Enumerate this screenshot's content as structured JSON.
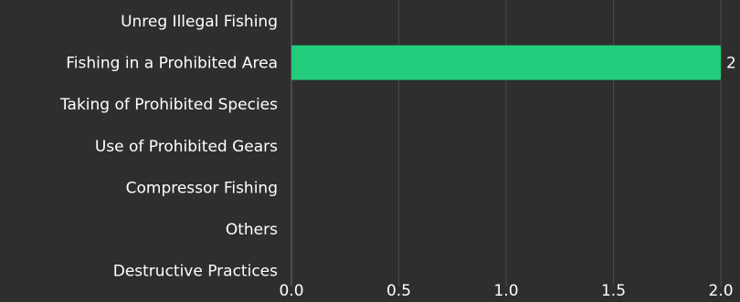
{
  "chart_data": {
    "type": "bar",
    "orientation": "horizontal",
    "categories": [
      "Unreg Illegal Fishing",
      "Fishing in a Prohibited Area",
      "Taking of Prohibited Species",
      "Use of Prohibited Gears",
      "Compressor Fishing",
      "Others",
      "Destructive Practices"
    ],
    "values": [
      0,
      2,
      0,
      0,
      0,
      0,
      0
    ],
    "data_labels": [
      "",
      "2",
      "",
      "",
      "",
      "",
      ""
    ],
    "xlim": [
      0,
      2
    ],
    "xticks": [
      "0.0",
      "0.5",
      "1.0",
      "1.5",
      "2.0"
    ],
    "grid": true,
    "colors": {
      "background": "#2e2e2e",
      "bar": "#22cc7c",
      "text": "#ffffff",
      "grid": "#4a4a4a"
    }
  }
}
